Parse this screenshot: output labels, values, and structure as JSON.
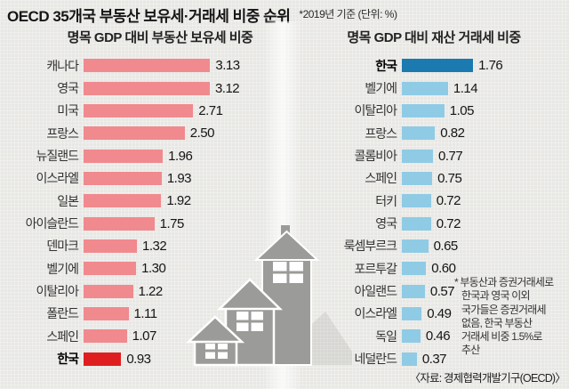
{
  "header": {
    "title": "OECD 35개국 부동산 보유세·거래세 비중 순위",
    "note": "*2019년 기준 (단위: %)"
  },
  "chart_data": [
    {
      "type": "bar",
      "orientation": "horizontal",
      "title": "명목 GDP 대비 부동산 보유세 비중",
      "unit": "%",
      "categories": [
        "캐나다",
        "영국",
        "미국",
        "프랑스",
        "뉴질랜드",
        "이스라엘",
        "일본",
        "아이슬란드",
        "덴마크",
        "벨기에",
        "이탈리아",
        "폴란드",
        "스페인",
        "한국"
      ],
      "values": [
        3.13,
        3.12,
        2.71,
        2.5,
        1.96,
        1.93,
        1.92,
        1.75,
        1.32,
        1.3,
        1.22,
        1.11,
        1.07,
        0.93
      ],
      "highlight_category": "한국",
      "bar_color": "#f08a8e",
      "highlight_color": "#df1f1f",
      "value_labels_shown": true,
      "axis_shown": false
    },
    {
      "type": "bar",
      "orientation": "horizontal",
      "title": "명목 GDP 대비 재산 거래세 비중",
      "unit": "%",
      "categories": [
        "한국",
        "벨기에",
        "이탈리아",
        "프랑스",
        "콜롬비아",
        "스페인",
        "터키",
        "영국",
        "룩셈부르크",
        "포르투갈",
        "아일랜드",
        "이스라엘",
        "독일",
        "네덜란드"
      ],
      "values": [
        1.76,
        1.14,
        1.05,
        0.82,
        0.77,
        0.75,
        0.72,
        0.72,
        0.65,
        0.6,
        0.57,
        0.49,
        0.46,
        0.37
      ],
      "highlight_category": "한국",
      "bar_color": "#8fcbe5",
      "highlight_color": "#1b7ab0",
      "value_labels_shown": true,
      "axis_shown": false
    }
  ],
  "annotation": {
    "lines": [
      "* 부동산과 증권거래세로",
      "한국과 영국 이외",
      "국가들은 증권거래세",
      "없음, 한국 부동산",
      "거래세 비중 1.5%로",
      "추산"
    ]
  },
  "source": "〈자료: 경제협력개발기구(OECD)〉",
  "illustration": {
    "name": "houses-icon",
    "color": "#9b9b99"
  }
}
